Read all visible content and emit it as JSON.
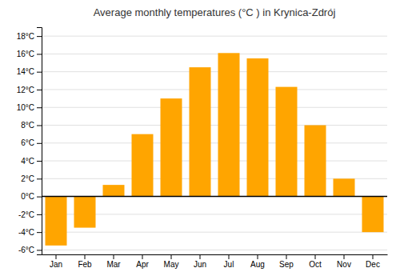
{
  "chart_data": {
    "type": "bar",
    "title": "Average monthly temperatures (°C ) in Krynica-Zdrój",
    "categories": [
      "Jan",
      "Feb",
      "Mar",
      "Apr",
      "May",
      "Jun",
      "Jul",
      "Aug",
      "Sep",
      "Oct",
      "Nov",
      "Dec"
    ],
    "values": [
      -5.5,
      -3.5,
      1.3,
      7.0,
      11.0,
      14.5,
      16.1,
      15.5,
      12.3,
      8.0,
      2.0,
      -4.0
    ],
    "color": "#FFA500",
    "ylim": [
      -6.5,
      19
    ],
    "yticks": [
      {
        "value": -6,
        "label": "-6°C"
      },
      {
        "value": -4,
        "label": "-4°C"
      },
      {
        "value": -2,
        "label": "-2°C"
      },
      {
        "value": 0,
        "label": "0°C"
      },
      {
        "value": 2,
        "label": "2°C"
      },
      {
        "value": 4,
        "label": "4°C"
      },
      {
        "value": 6,
        "label": "6°C"
      },
      {
        "value": 8,
        "label": "8°C"
      },
      {
        "value": 10,
        "label": "10°C"
      },
      {
        "value": 12,
        "label": "12°C"
      },
      {
        "value": 14,
        "label": "14°C"
      },
      {
        "value": 16,
        "label": "16°C"
      },
      {
        "value": 18,
        "label": "18°C"
      }
    ],
    "grid": true
  }
}
